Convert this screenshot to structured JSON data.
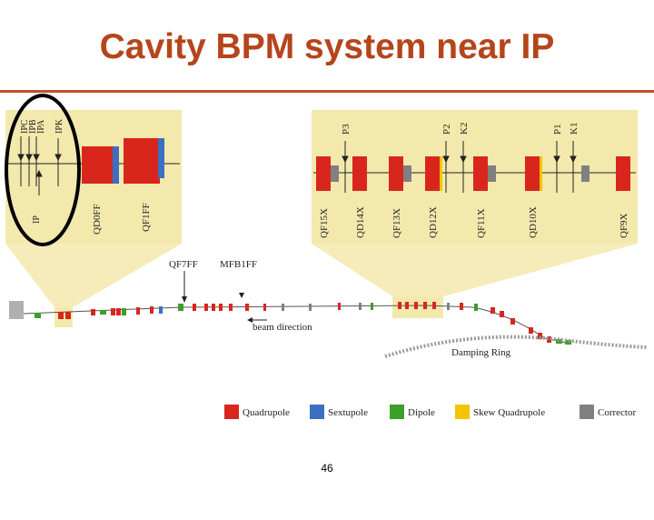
{
  "slide": {
    "title": "Cavity BPM system near IP",
    "page_number": "46"
  },
  "colors": {
    "title": "#b5451b",
    "rule": "#c0502a",
    "highlight": "#f3e9ad",
    "quadrupole": "#d9261c",
    "sextupole": "#3b6fc4",
    "dipole": "#3aa02a",
    "skew_quadrupole": "#f2c500",
    "corrector": "#808080"
  },
  "left_inset": {
    "bpm_labels": [
      "IPC",
      "IPB",
      "IPA",
      "IPK"
    ],
    "ip_label": "IP",
    "magnet_labels": [
      "QD0FF",
      "QF1FF"
    ]
  },
  "right_inset": {
    "bpm_labels": [
      "P3",
      "P2",
      "K2",
      "P1",
      "K1"
    ],
    "magnet_labels": [
      "QF15X",
      "QD14X",
      "QF13X",
      "QD12X",
      "QF11X",
      "QD10X",
      "QF9X"
    ]
  },
  "beamline": {
    "label_qf7ff": "QF7FF",
    "label_mfb1ff": "MFB1FF",
    "beam_direction": "beam direction",
    "damping_ring": "Damping Ring"
  },
  "legend": [
    {
      "label": "Quadrupole",
      "color": "#d9261c"
    },
    {
      "label": "Sextupole",
      "color": "#3b6fc4"
    },
    {
      "label": "Dipole",
      "color": "#3aa02a"
    },
    {
      "label": "Skew Quadrupole",
      "color": "#f2c500"
    },
    {
      "label": "Corrector",
      "color": "#808080"
    }
  ]
}
